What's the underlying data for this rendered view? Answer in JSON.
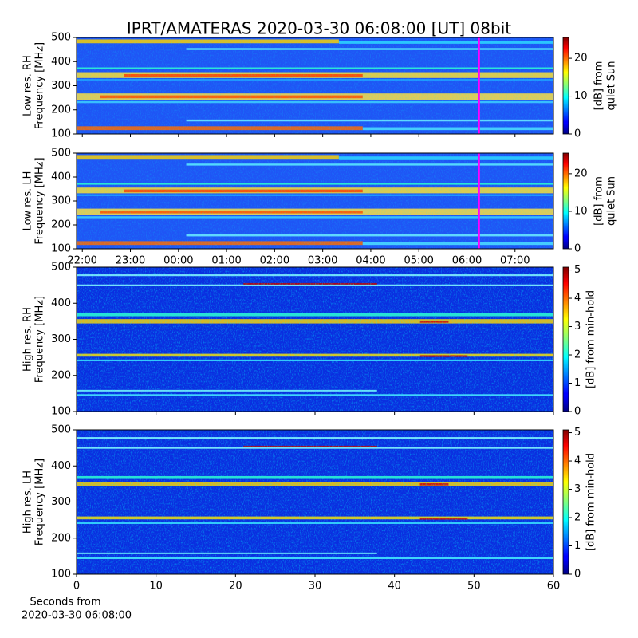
{
  "title": "IPRT/AMATERAS 2020-03-30 06:08:00 [UT]   08bit",
  "chart_data": [
    {
      "type": "heatmap",
      "colormap": "jet",
      "resolution": "low",
      "ylabel": [
        "Low res. RH",
        "Frequency [MHz]"
      ],
      "ylim": [
        100,
        500
      ],
      "yticks": [
        100,
        200,
        300,
        400,
        500
      ],
      "xlim": [
        21.88,
        31.8
      ],
      "xticks": [
        22,
        23,
        24,
        25,
        26,
        27,
        28,
        29,
        30,
        31
      ],
      "marker": {
        "x": 30.25,
        "color": "#ff00ff"
      },
      "colorbar": {
        "label": [
          "[dB] from",
          "quiet Sun"
        ],
        "lim": [
          0,
          25.5
        ],
        "ticks": [
          0,
          10,
          20
        ]
      }
    },
    {
      "type": "heatmap",
      "colormap": "jet",
      "resolution": "low",
      "ylabel": [
        "Low res. LH",
        "Frequency [MHz]"
      ],
      "ylim": [
        100,
        500
      ],
      "yticks": [
        100,
        200,
        300,
        400,
        500
      ],
      "xlim": [
        21.88,
        31.8
      ],
      "xticks": [
        {
          "value": 22,
          "label": "22:00"
        },
        {
          "value": 23,
          "label": "23:00"
        },
        {
          "value": 24,
          "label": "00:00"
        },
        {
          "value": 25,
          "label": "01:00"
        },
        {
          "value": 26,
          "label": "02:00"
        },
        {
          "value": 27,
          "label": "03:00"
        },
        {
          "value": 28,
          "label": "04:00"
        },
        {
          "value": 29,
          "label": "05:00"
        },
        {
          "value": 30,
          "label": "06:00"
        },
        {
          "value": 31,
          "label": "07:00"
        }
      ],
      "marker": {
        "x": 30.25,
        "color": "#ff00ff"
      },
      "colorbar": {
        "label": [
          "[dB] from",
          "quiet Sun"
        ],
        "lim": [
          0,
          25.5
        ],
        "ticks": [
          0,
          10,
          20
        ]
      }
    },
    {
      "type": "heatmap",
      "colormap": "jet",
      "resolution": "high",
      "ylabel": [
        "High res. RH",
        "Frequency [MHz]"
      ],
      "ylim": [
        100,
        500
      ],
      "yticks": [
        100,
        200,
        300,
        400,
        500
      ],
      "xlim": [
        0,
        60
      ],
      "xticks": [
        0,
        10,
        20,
        30,
        40,
        50,
        60
      ],
      "colorbar": {
        "label": [
          "[dB] from min-hold"
        ],
        "lim": [
          0,
          5.1
        ],
        "ticks": [
          0,
          1,
          2,
          3,
          4,
          5
        ]
      }
    },
    {
      "type": "heatmap",
      "colormap": "jet",
      "resolution": "high",
      "ylabel": [
        "High res. LH",
        "Frequency [MHz]"
      ],
      "ylim": [
        100,
        500
      ],
      "yticks": [
        100,
        200,
        300,
        400,
        500
      ],
      "xlim": [
        0,
        60
      ],
      "xticks": [
        0,
        10,
        20,
        30,
        40,
        50,
        60
      ],
      "xlabel": [
        "Seconds from",
        "2020-03-30 06:08:00"
      ],
      "colorbar": {
        "label": [
          "[dB] from min-hold"
        ],
        "lim": [
          0,
          5.1
        ],
        "ticks": [
          0,
          1,
          2,
          3,
          4,
          5
        ]
      }
    }
  ]
}
